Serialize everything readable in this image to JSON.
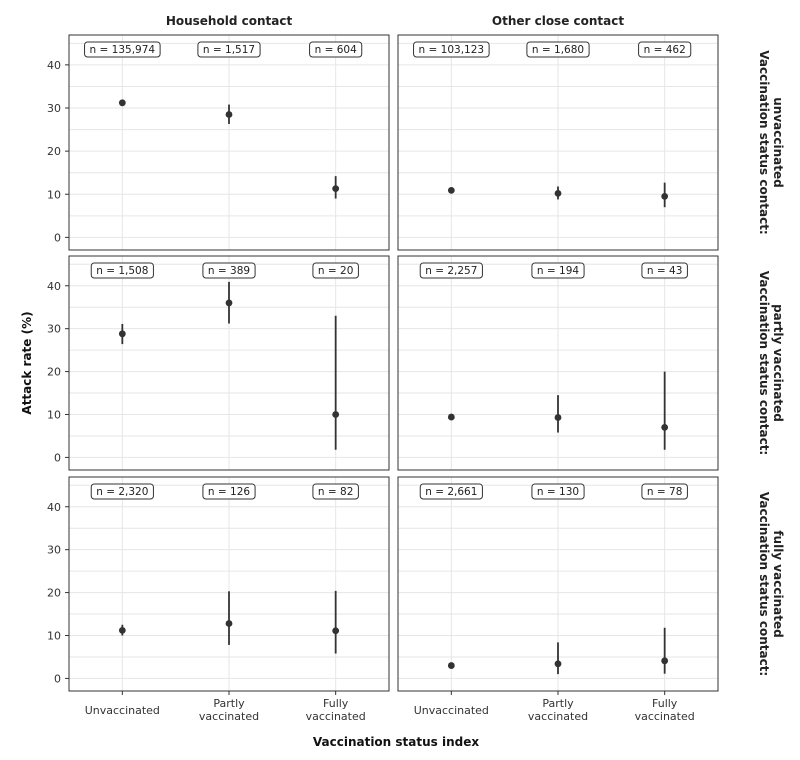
{
  "chart_data": {
    "type": "scatter",
    "subtype": "point-range facet grid",
    "title": "",
    "xlabel": "Vaccination status index",
    "ylabel": "Attack rate (%)",
    "ylim": [
      -2,
      46
    ],
    "yticks": [
      0,
      10,
      20,
      30,
      40
    ],
    "grid": true,
    "categories": [
      "Unvaccinated",
      "Partly vaccinated",
      "Fully vaccinated"
    ],
    "category_lines": [
      [
        "Unvaccinated"
      ],
      [
        "Partly",
        "vaccinated"
      ],
      [
        "Fully",
        "vaccinated"
      ]
    ],
    "column_facets": [
      "Household contact",
      "Other close contact"
    ],
    "row_facets": [
      [
        "Vaccination status contact:",
        "unvaccinated"
      ],
      [
        "Vaccination status contact:",
        "partly vaccinated"
      ],
      [
        "Vaccination status contact:",
        "fully vaccinated"
      ]
    ],
    "panels": [
      [
        {
          "column": "Household contact",
          "row": "unvaccinated",
          "points": [
            {
              "x": "Unvaccinated",
              "y": 31.2,
              "lo": 30.9,
              "hi": 31.5,
              "n": "n = 135,974"
            },
            {
              "x": "Partly vaccinated",
              "y": 28.5,
              "lo": 26.3,
              "hi": 30.8,
              "n": "n = 1,517"
            },
            {
              "x": "Fully vaccinated",
              "y": 11.3,
              "lo": 9.0,
              "hi": 14.2,
              "n": "n = 604"
            }
          ]
        },
        {
          "column": "Other close contact",
          "row": "unvaccinated",
          "points": [
            {
              "x": "Unvaccinated",
              "y": 10.9,
              "lo": 10.6,
              "hi": 11.2,
              "n": "n = 103,123"
            },
            {
              "x": "Partly vaccinated",
              "y": 10.2,
              "lo": 8.8,
              "hi": 11.8,
              "n": "n = 1,680"
            },
            {
              "x": "Fully vaccinated",
              "y": 9.5,
              "lo": 7.0,
              "hi": 12.7,
              "n": "n = 462"
            }
          ]
        }
      ],
      [
        {
          "column": "Household contact",
          "row": "partly vaccinated",
          "points": [
            {
              "x": "Unvaccinated",
              "y": 28.8,
              "lo": 26.4,
              "hi": 31.1,
              "n": "n = 1,508"
            },
            {
              "x": "Partly vaccinated",
              "y": 36.0,
              "lo": 31.2,
              "hi": 40.9,
              "n": "n = 389"
            },
            {
              "x": "Fully vaccinated",
              "y": 10.0,
              "lo": 1.8,
              "hi": 33.0,
              "n": "n = 20"
            }
          ]
        },
        {
          "column": "Other close contact",
          "row": "partly vaccinated",
          "points": [
            {
              "x": "Unvaccinated",
              "y": 9.4,
              "lo": 9.0,
              "hi": 9.8,
              "n": "n = 2,257"
            },
            {
              "x": "Partly vaccinated",
              "y": 9.3,
              "lo": 5.8,
              "hi": 14.5,
              "n": "n = 194"
            },
            {
              "x": "Fully vaccinated",
              "y": 7.0,
              "lo": 1.8,
              "hi": 20.0,
              "n": "n = 43"
            }
          ]
        }
      ],
      [
        {
          "column": "Household contact",
          "row": "fully vaccinated",
          "points": [
            {
              "x": "Unvaccinated",
              "y": 11.2,
              "lo": 10.0,
              "hi": 12.5,
              "n": "n = 2,320"
            },
            {
              "x": "Partly vaccinated",
              "y": 12.8,
              "lo": 7.8,
              "hi": 20.3,
              "n": "n = 126"
            },
            {
              "x": "Fully vaccinated",
              "y": 11.1,
              "lo": 5.8,
              "hi": 20.4,
              "n": "n = 82"
            }
          ]
        },
        {
          "column": "Other close contact",
          "row": "fully vaccinated",
          "points": [
            {
              "x": "Unvaccinated",
              "y": 3.0,
              "lo": 2.4,
              "hi": 3.7,
              "n": "n = 2,661"
            },
            {
              "x": "Partly vaccinated",
              "y": 3.4,
              "lo": 1.0,
              "hi": 8.4,
              "n": "n = 130"
            },
            {
              "x": "Fully vaccinated",
              "y": 4.1,
              "lo": 1.1,
              "hi": 11.8,
              "n": "n = 78"
            }
          ]
        }
      ]
    ],
    "colors": {
      "point": "#333333",
      "grid": "#e6e6e6",
      "panel_border": "#333333"
    }
  }
}
